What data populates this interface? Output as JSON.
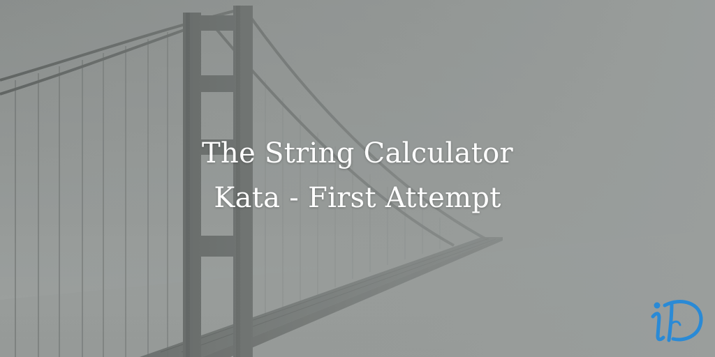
{
  "post": {
    "title_line_1": "The String Calculator",
    "title_line_2": "Kata - First Attempt"
  },
  "logo": {
    "text": "iD",
    "color": "#2a8ad6"
  },
  "scene": {
    "subject": "suspension-bridge-in-fog",
    "tone": "monochrome-grey"
  }
}
